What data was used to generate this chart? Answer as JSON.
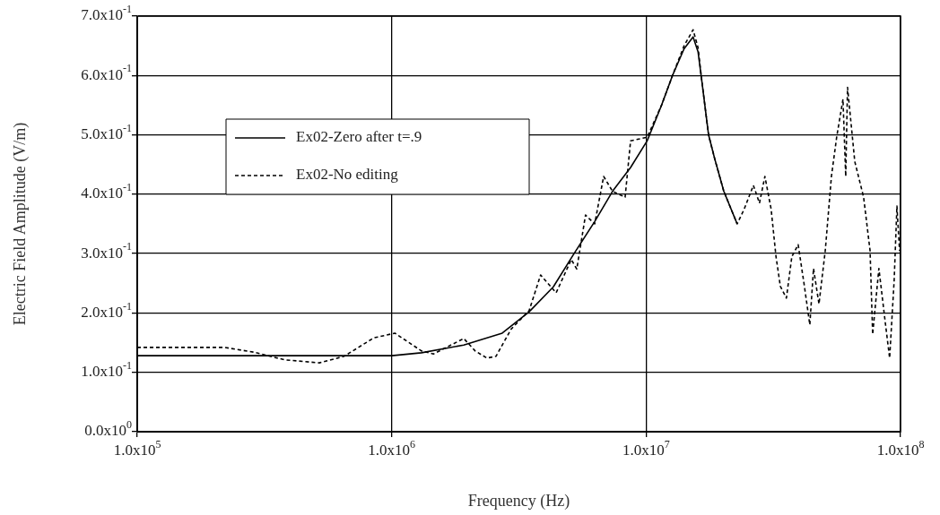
{
  "chart_data": {
    "type": "line",
    "xlabel": "Frequency (Hz)",
    "ylabel": "Electric Field Amplitude (V/m)",
    "log": "x",
    "xlim": [
      100000,
      100000000
    ],
    "xticks": [
      {
        "value": 100000,
        "label": "1.0x10$^{5}$"
      },
      {
        "value": 1000000,
        "label": "1.0x10$^{6}$"
      },
      {
        "value": 10000000,
        "label": "1.0x10$^{7}$"
      },
      {
        "value": 100000000,
        "label": "1.0x10$^{8}$"
      }
    ],
    "ylim": [
      0,
      0.7
    ],
    "yticks": [
      {
        "value": 0,
        "label": "0.0x10$^{0}$"
      },
      {
        "value": 0.1,
        "label": "1.0x10$^{-1}$"
      },
      {
        "value": 0.2,
        "label": "2.0x10$^{-1}$"
      },
      {
        "value": 0.3,
        "label": "3.0x10$^{-1}$"
      },
      {
        "value": 0.4,
        "label": "4.0x10$^{-1}$"
      },
      {
        "value": 0.5,
        "label": "5.0x10$^{-1}$"
      },
      {
        "value": 0.6,
        "label": "6.0x10$^{-1}$"
      },
      {
        "value": 0.7,
        "label": "7.0x10$^{-1}$"
      }
    ],
    "grid": true,
    "legend": "top left",
    "marker": "none",
    "series": [
      {
        "name": "Ex02-Zero after t=.9",
        "color": "#000000",
        "line_style": "solid",
        "x": [
          100000,
          220000,
          500000,
          1000000,
          1310000,
          1920000,
          2720000,
          3470000,
          4320000,
          5210000,
          6280000,
          7380000,
          8690000,
          10100000,
          11500000,
          12700000,
          14100000,
          15300000,
          16000000,
          16600000,
          17600000,
          18600000,
          20200000,
          22800000
        ],
        "values": [
          0.128,
          0.128,
          0.128,
          0.128,
          0.133,
          0.146,
          0.166,
          0.202,
          0.244,
          0.3,
          0.354,
          0.405,
          0.445,
          0.49,
          0.55,
          0.6,
          0.645,
          0.665,
          0.64,
          0.587,
          0.5,
          0.46,
          0.405,
          0.35
        ]
      },
      {
        "name": "Ex02-No editing",
        "color": "#000000",
        "line_style": "dashed",
        "x": [
          100000,
          220000,
          287000,
          380000,
          520000,
          650000,
          850000,
          1030000,
          1310000,
          1460000,
          1920000,
          2130000,
          2370000,
          2570000,
          2950000,
          3470000,
          3850000,
          4430000,
          5080000,
          5340000,
          5780000,
          6280000,
          6810000,
          7380000,
          8270000,
          8690000,
          10100000,
          11500000,
          12700000,
          14100000,
          15300000,
          16000000,
          16600000,
          17600000,
          18600000,
          20200000,
          22800000,
          24300000,
          26400000,
          27900000,
          29300000,
          31000000,
          32400000,
          33700000,
          35600000,
          37400000,
          39600000,
          41900000,
          44000000,
          45500000,
          47800000,
          50600000,
          53500000,
          56100000,
          59400000,
          60900000,
          61900000,
          66100000,
          71600000,
          75900000,
          77700000,
          82200000,
          87100000,
          90600000,
          94400000,
          96800000,
          99100000
        ],
        "values": [
          0.142,
          0.142,
          0.134,
          0.121,
          0.116,
          0.127,
          0.158,
          0.166,
          0.136,
          0.131,
          0.157,
          0.136,
          0.124,
          0.127,
          0.173,
          0.204,
          0.264,
          0.234,
          0.29,
          0.274,
          0.365,
          0.35,
          0.43,
          0.405,
          0.395,
          0.49,
          0.496,
          0.55,
          0.6,
          0.65,
          0.677,
          0.647,
          0.587,
          0.5,
          0.46,
          0.405,
          0.35,
          0.375,
          0.415,
          0.385,
          0.43,
          0.375,
          0.295,
          0.245,
          0.225,
          0.295,
          0.315,
          0.245,
          0.18,
          0.275,
          0.215,
          0.305,
          0.43,
          0.496,
          0.56,
          0.43,
          0.58,
          0.455,
          0.395,
          0.305,
          0.164,
          0.275,
          0.184,
          0.124,
          0.255,
          0.38,
          0.305
        ]
      }
    ]
  }
}
